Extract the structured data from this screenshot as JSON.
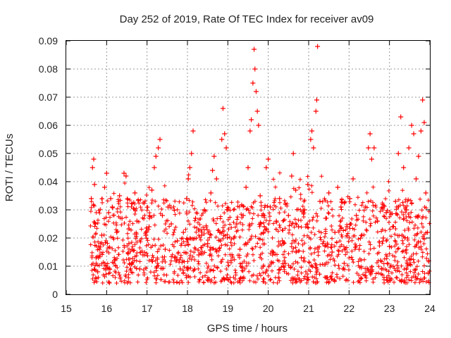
{
  "chart_data": {
    "type": "scatter",
    "title": "Day 252 of 2019, Rate Of TEC Index for receiver av09",
    "xlabel": "GPS time / hours",
    "ylabel": "ROTI / TECUs",
    "xlim": [
      15,
      24
    ],
    "ylim": [
      0,
      0.09
    ],
    "x_ticks": [
      15,
      16,
      17,
      18,
      19,
      20,
      21,
      22,
      23,
      24
    ],
    "y_ticks": [
      0,
      0.01,
      0.02,
      0.03,
      0.04,
      0.05,
      0.06,
      0.07,
      0.08,
      0.09
    ],
    "x_tick_labels": [
      "15",
      "16",
      "17",
      "18",
      "19",
      "20",
      "21",
      "22",
      "23",
      "24"
    ],
    "y_tick_labels": [
      "0",
      "0.01",
      "0.02",
      "0.03",
      "0.04",
      "0.05",
      "0.06",
      "0.07",
      "0.08",
      "0.09"
    ],
    "grid": true,
    "marker": "+",
    "series_color": "#ff0000",
    "series": [
      {
        "name": "ROTI",
        "points": [
          [
            15.62,
            0.034
          ],
          [
            15.65,
            0.045
          ],
          [
            15.68,
            0.048
          ],
          [
            15.7,
            0.039
          ],
          [
            15.72,
            0.025
          ],
          [
            15.74,
            0.013
          ],
          [
            15.78,
            0.008
          ],
          [
            15.82,
            0.016
          ],
          [
            15.88,
            0.021
          ],
          [
            15.95,
            0.038
          ],
          [
            16.0,
            0.043
          ],
          [
            16.05,
            0.029
          ],
          [
            16.1,
            0.034
          ],
          [
            16.14,
            0.031
          ],
          [
            16.2,
            0.012
          ],
          [
            16.25,
            0.022
          ],
          [
            16.32,
            0.035
          ],
          [
            16.38,
            0.027
          ],
          [
            16.43,
            0.043
          ],
          [
            16.48,
            0.042
          ],
          [
            16.55,
            0.018
          ],
          [
            16.62,
            0.011
          ],
          [
            16.7,
            0.036
          ],
          [
            16.75,
            0.026
          ],
          [
            16.82,
            0.009
          ],
          [
            16.9,
            0.014
          ],
          [
            16.97,
            0.021
          ],
          [
            17.05,
            0.024
          ],
          [
            17.12,
            0.037
          ],
          [
            17.18,
            0.045
          ],
          [
            17.22,
            0.049
          ],
          [
            17.28,
            0.052
          ],
          [
            17.32,
            0.055
          ],
          [
            17.38,
            0.028
          ],
          [
            17.45,
            0.016
          ],
          [
            17.52,
            0.031
          ],
          [
            17.6,
            0.025
          ],
          [
            17.68,
            0.013
          ],
          [
            17.75,
            0.019
          ],
          [
            17.82,
            0.009
          ],
          [
            17.9,
            0.022
          ],
          [
            17.98,
            0.034
          ],
          [
            18.02,
            0.041
          ],
          [
            18.06,
            0.045
          ],
          [
            18.1,
            0.05
          ],
          [
            18.14,
            0.058
          ],
          [
            18.2,
            0.027
          ],
          [
            18.28,
            0.014
          ],
          [
            18.35,
            0.021
          ],
          [
            18.42,
            0.03
          ],
          [
            18.5,
            0.018
          ],
          [
            18.58,
            0.036
          ],
          [
            18.62,
            0.044
          ],
          [
            18.66,
            0.049
          ],
          [
            18.72,
            0.041
          ],
          [
            18.8,
            0.022
          ],
          [
            18.85,
            0.055
          ],
          [
            18.88,
            0.066
          ],
          [
            18.92,
            0.057
          ],
          [
            18.96,
            0.052
          ],
          [
            19.0,
            0.03
          ],
          [
            19.08,
            0.012
          ],
          [
            19.15,
            0.02
          ],
          [
            19.22,
            0.025
          ],
          [
            19.3,
            0.016
          ],
          [
            19.38,
            0.028
          ],
          [
            19.45,
            0.038
          ],
          [
            19.5,
            0.045
          ],
          [
            19.55,
            0.058
          ],
          [
            19.58,
            0.062
          ],
          [
            19.62,
            0.075
          ],
          [
            19.65,
            0.087
          ],
          [
            19.67,
            0.08
          ],
          [
            19.7,
            0.072
          ],
          [
            19.73,
            0.065
          ],
          [
            19.76,
            0.06
          ],
          [
            19.8,
            0.035
          ],
          [
            19.88,
            0.022
          ],
          [
            19.95,
            0.045
          ],
          [
            20.0,
            0.048
          ],
          [
            20.05,
            0.031
          ],
          [
            20.12,
            0.015
          ],
          [
            20.2,
            0.026
          ],
          [
            20.28,
            0.034
          ],
          [
            20.35,
            0.019
          ],
          [
            20.42,
            0.011
          ],
          [
            20.5,
            0.028
          ],
          [
            20.58,
            0.042
          ],
          [
            20.62,
            0.05
          ],
          [
            20.68,
            0.037
          ],
          [
            20.75,
            0.024
          ],
          [
            20.82,
            0.013
          ],
          [
            20.9,
            0.03
          ],
          [
            20.98,
            0.039
          ],
          [
            21.05,
            0.055
          ],
          [
            21.08,
            0.058
          ],
          [
            21.12,
            0.052
          ],
          [
            21.18,
            0.065
          ],
          [
            21.2,
            0.069
          ],
          [
            21.22,
            0.088
          ],
          [
            21.28,
            0.033
          ],
          [
            21.35,
            0.018
          ],
          [
            21.42,
            0.027
          ],
          [
            21.5,
            0.036
          ],
          [
            21.58,
            0.015
          ],
          [
            21.65,
            0.022
          ],
          [
            21.72,
            0.038
          ],
          [
            21.8,
            0.031
          ],
          [
            21.88,
            0.011
          ],
          [
            21.95,
            0.024
          ],
          [
            22.02,
            0.034
          ],
          [
            22.1,
            0.041
          ],
          [
            22.18,
            0.028
          ],
          [
            22.25,
            0.016
          ],
          [
            22.32,
            0.021
          ],
          [
            22.4,
            0.031
          ],
          [
            22.48,
            0.052
          ],
          [
            22.52,
            0.057
          ],
          [
            22.56,
            0.048
          ],
          [
            22.62,
            0.052
          ],
          [
            22.7,
            0.026
          ],
          [
            22.78,
            0.012
          ],
          [
            22.85,
            0.02
          ],
          [
            22.92,
            0.029
          ],
          [
            23.0,
            0.017
          ],
          [
            23.08,
            0.024
          ],
          [
            23.15,
            0.033
          ],
          [
            23.22,
            0.05
          ],
          [
            23.28,
            0.063
          ],
          [
            23.35,
            0.045
          ],
          [
            23.42,
            0.03
          ],
          [
            23.48,
            0.052
          ],
          [
            23.55,
            0.06
          ],
          [
            23.6,
            0.057
          ],
          [
            23.66,
            0.041
          ],
          [
            23.72,
            0.049
          ],
          [
            23.78,
            0.058
          ],
          [
            23.82,
            0.069
          ],
          [
            23.86,
            0.061
          ],
          [
            23.9,
            0.036
          ],
          [
            23.94,
            0.022
          ],
          [
            23.97,
            0.012
          ]
        ]
      }
    ]
  }
}
